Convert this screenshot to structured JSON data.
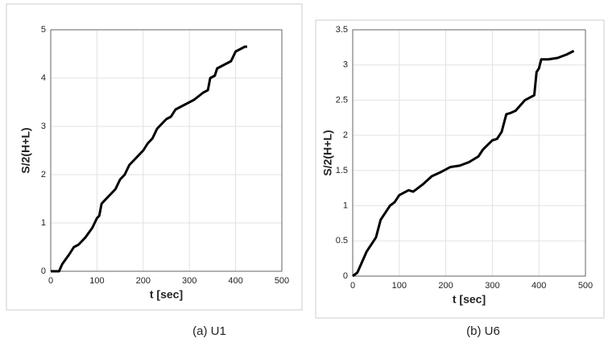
{
  "chart_data": [
    {
      "type": "line",
      "xlabel": "t [sec]",
      "ylabel": "S/2(H+L)",
      "caption": "(a)  U1",
      "grid": true,
      "xlim": [
        0,
        500
      ],
      "xticks": [
        0,
        100,
        200,
        300,
        400,
        500
      ],
      "ylim": [
        0,
        5
      ],
      "yticks": [
        0,
        1,
        2,
        3,
        4,
        5
      ],
      "x": [
        0,
        18,
        25,
        40,
        50,
        60,
        75,
        90,
        100,
        105,
        110,
        125,
        140,
        150,
        160,
        170,
        180,
        200,
        210,
        220,
        230,
        250,
        260,
        270,
        290,
        310,
        330,
        340,
        345,
        355,
        360,
        380,
        390,
        400,
        410,
        420,
        425
      ],
      "series": [
        {
          "color": "#000000",
          "values": [
            0,
            0,
            0.15,
            0.35,
            0.5,
            0.55,
            0.7,
            0.9,
            1.1,
            1.15,
            1.4,
            1.55,
            1.7,
            1.9,
            2.0,
            2.2,
            2.3,
            2.5,
            2.65,
            2.75,
            2.95,
            3.15,
            3.2,
            3.35,
            3.45,
            3.55,
            3.7,
            3.75,
            4.0,
            4.05,
            4.2,
            4.3,
            4.35,
            4.55,
            4.6,
            4.65,
            4.65
          ]
        }
      ]
    },
    {
      "type": "line",
      "xlabel": "t [sec]",
      "ylabel": "S/2(H+L)",
      "caption": "(b) U6",
      "grid": true,
      "xlim": [
        0,
        500
      ],
      "xticks": [
        0,
        100,
        200,
        300,
        400,
        500
      ],
      "ylim": [
        0,
        3.5
      ],
      "yticks": [
        0,
        0.5,
        1,
        1.5,
        2,
        2.5,
        3,
        3.5
      ],
      "x": [
        0,
        10,
        20,
        30,
        40,
        50,
        60,
        70,
        80,
        90,
        100,
        120,
        130,
        150,
        170,
        190,
        210,
        230,
        250,
        270,
        280,
        300,
        310,
        320,
        330,
        340,
        350,
        370,
        390,
        395,
        400,
        405,
        420,
        440,
        460,
        475
      ],
      "series": [
        {
          "color": "#000000",
          "values": [
            0,
            0.05,
            0.2,
            0.35,
            0.45,
            0.55,
            0.8,
            0.9,
            1.0,
            1.05,
            1.15,
            1.22,
            1.2,
            1.3,
            1.42,
            1.48,
            1.55,
            1.57,
            1.62,
            1.7,
            1.8,
            1.93,
            1.95,
            2.05,
            2.3,
            2.32,
            2.35,
            2.5,
            2.57,
            2.9,
            2.95,
            3.08,
            3.08,
            3.1,
            3.15,
            3.2
          ]
        }
      ]
    }
  ]
}
